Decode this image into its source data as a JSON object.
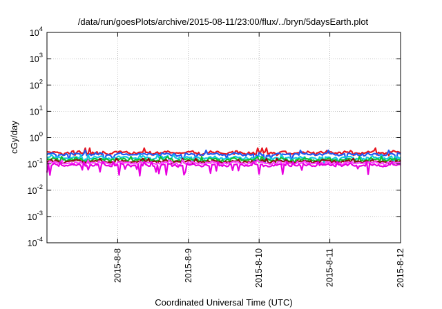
{
  "chart_data": {
    "type": "line",
    "title": "/data/run/goesPlots/archive/2015-08-11/23:00/flux/../bryn/5daysEarth.plot",
    "xlabel": "Coordinated Universal Time (UTC)",
    "ylabel": "cGy/day",
    "y_scale": "log",
    "ylim": [
      0.0001,
      10000
    ],
    "y_ticks": [
      {
        "value": 0.0001,
        "base": "10",
        "exp": "-4"
      },
      {
        "value": 0.001,
        "base": "10",
        "exp": "-3"
      },
      {
        "value": 0.01,
        "base": "10",
        "exp": "-2"
      },
      {
        "value": 0.1,
        "base": "10",
        "exp": "-1"
      },
      {
        "value": 1,
        "base": "10",
        "exp": "0"
      },
      {
        "value": 10,
        "base": "10",
        "exp": "1"
      },
      {
        "value": 100,
        "base": "10",
        "exp": "2"
      },
      {
        "value": 1000,
        "base": "10",
        "exp": "3"
      },
      {
        "value": 10000,
        "base": "10",
        "exp": "4"
      }
    ],
    "xlim": [
      "2015-08-07 00:00",
      "2015-08-12 00:00"
    ],
    "x_ticks": [
      "2015-8-8",
      "2015-8-9",
      "2015-8-10",
      "2015-8-11",
      "2015-8-12"
    ],
    "grid": true,
    "legend": "none",
    "series": [
      {
        "color": "#e8141e",
        "level": 0.27,
        "lo": 0.2,
        "hi": 0.4
      },
      {
        "color": "#2158f0",
        "level": 0.23,
        "lo": 0.11,
        "hi": 0.33
      },
      {
        "color": "#12c8e0",
        "level": 0.17,
        "lo": 0.1,
        "hi": 0.22
      },
      {
        "color": "#10c030",
        "level": 0.145,
        "lo": 0.11,
        "hi": 0.19
      },
      {
        "color": "#8a1010",
        "level": 0.125,
        "lo": 0.1,
        "hi": 0.16
      },
      {
        "color": "#ff40ff",
        "level": 0.11,
        "lo": 0.085,
        "hi": 0.14
      },
      {
        "color": "#e800e0",
        "level": 0.09,
        "lo": 0.035,
        "hi": 0.12
      }
    ]
  }
}
